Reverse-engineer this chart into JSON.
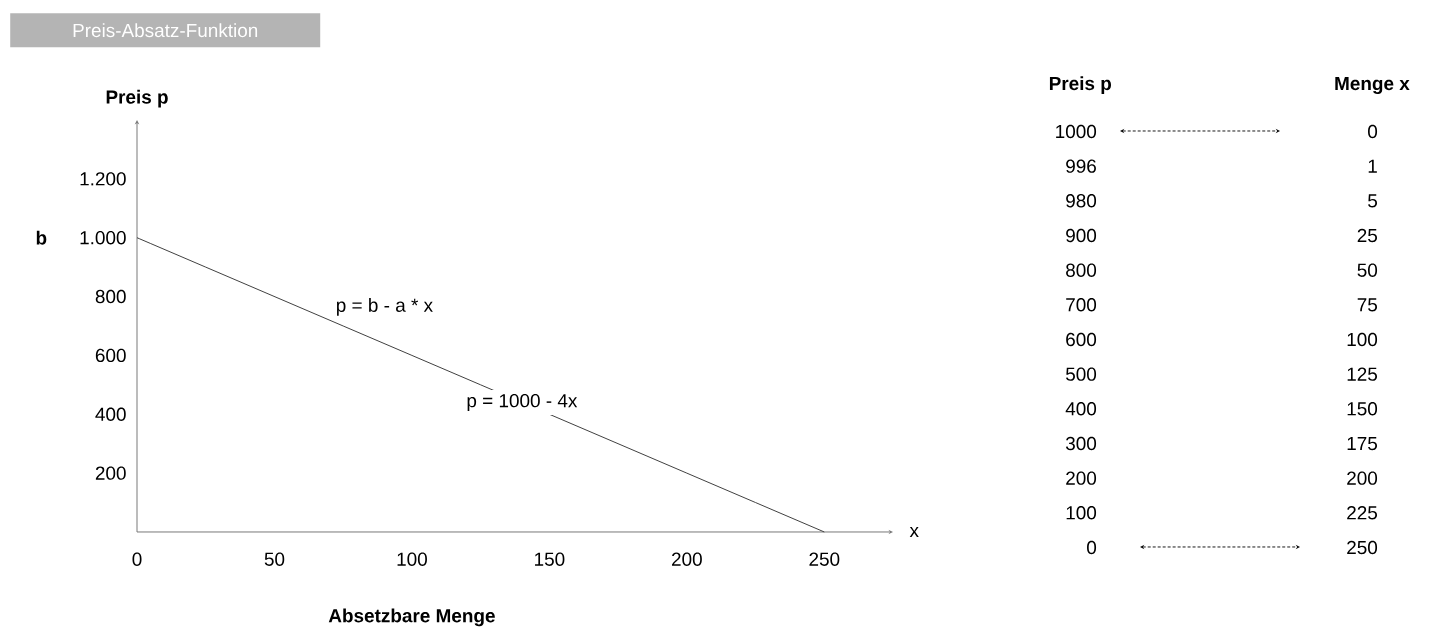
{
  "chart_data": [
    {
      "type": "line",
      "title": "Preis-Absatz-Funktion",
      "xlabel": "Absetzbare Menge",
      "ylabel": "Preis p",
      "x": [
        0,
        1,
        5,
        25,
        50,
        75,
        100,
        125,
        150,
        175,
        200,
        225,
        250
      ],
      "series": [
        {
          "color": "#404040",
          "values": [
            1000,
            996,
            980,
            900,
            800,
            700,
            600,
            500,
            400,
            300,
            200,
            100,
            0
          ]
        }
      ],
      "xlim": [
        0,
        275
      ],
      "ylim": [
        0,
        1400
      ],
      "xticks": [
        0,
        50,
        100,
        150,
        200,
        250
      ],
      "yticks": [
        200,
        400,
        600,
        800,
        {
          "value": 1000,
          "label": "1.000"
        },
        {
          "value": 1200,
          "label": "1.200"
        }
      ],
      "marker": "none",
      "line_style": "solid",
      "annotations": [
        "b",
        "p = b - a * x",
        "p = 1000 - 4x",
        "x"
      ]
    },
    {
      "type": "other",
      "annotations": [
        "Preis p",
        "Menge x",
        "1000",
        "0",
        "996",
        "1",
        "980",
        "5",
        "900",
        "25",
        "800",
        "50",
        "700",
        "75",
        "600",
        "100",
        "500",
        "125",
        "400",
        "150",
        "300",
        "175",
        "200",
        "200",
        "100",
        "225",
        "0",
        "250"
      ]
    }
  ]
}
